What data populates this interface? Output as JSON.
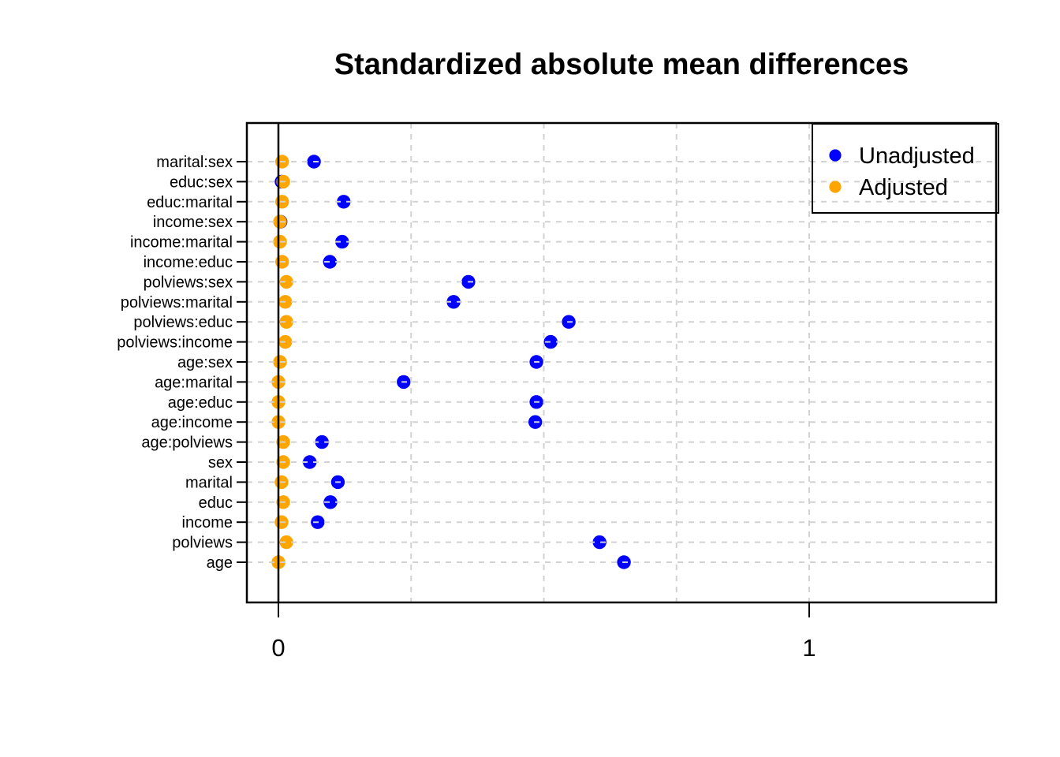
{
  "title": "Standardized absolute mean differences",
  "legend": {
    "items": [
      {
        "label": "Unadjusted",
        "color": "#0000ff"
      },
      {
        "label": "Adjusted",
        "color": "#ffa500"
      }
    ]
  },
  "x_axis": {
    "tick_labels": [
      "0",
      "1"
    ],
    "tick_values": [
      0,
      1
    ]
  },
  "colors": {
    "unadjusted": "#0000ff",
    "adjusted": "#ffa500",
    "gridline": "#d2d2d2",
    "axis": "#000000",
    "background": "#ffffff"
  },
  "chart_data": {
    "type": "scatter",
    "subtype": "dot-plot-horizontal (covariate balance love plot)",
    "title": "Standardized absolute mean differences",
    "xlabel": "",
    "ylabel": "",
    "xlim": [
      -0.06,
      1.35
    ],
    "x_ticks": [
      0,
      1
    ],
    "x_gridlines": [
      0.25,
      0.5,
      0.75,
      1.0
    ],
    "reference_line_x": 0,
    "grid": "dashed gray horizontal line per category and vertical at quarter marks, drawn over points",
    "legend_position": "top-right",
    "categories": [
      "marital:sex",
      "educ:sex",
      "educ:marital",
      "income:sex",
      "income:marital",
      "income:educ",
      "polviews:sex",
      "polviews:marital",
      "polviews:educ",
      "polviews:income",
      "age:sex",
      "age:marital",
      "age:educ",
      "age:income",
      "age:polviews",
      "sex",
      "marital",
      "educ",
      "income",
      "polviews",
      "age"
    ],
    "series": [
      {
        "name": "Unadjusted",
        "color": "#0000ff",
        "values": [
          0.067,
          0.006,
          0.123,
          0.004,
          0.12,
          0.097,
          0.358,
          0.33,
          0.547,
          0.513,
          0.486,
          0.236,
          0.486,
          0.484,
          0.082,
          0.059,
          0.112,
          0.098,
          0.074,
          0.605,
          0.651
        ]
      },
      {
        "name": "Adjusted",
        "color": "#ffa500",
        "values": [
          0.007,
          0.009,
          0.007,
          0.003,
          0.003,
          0.007,
          0.015,
          0.013,
          0.015,
          0.013,
          0.003,
          0.0,
          0.0,
          0.0,
          0.009,
          0.009,
          0.006,
          0.009,
          0.006,
          0.015,
          0.0
        ]
      }
    ]
  }
}
